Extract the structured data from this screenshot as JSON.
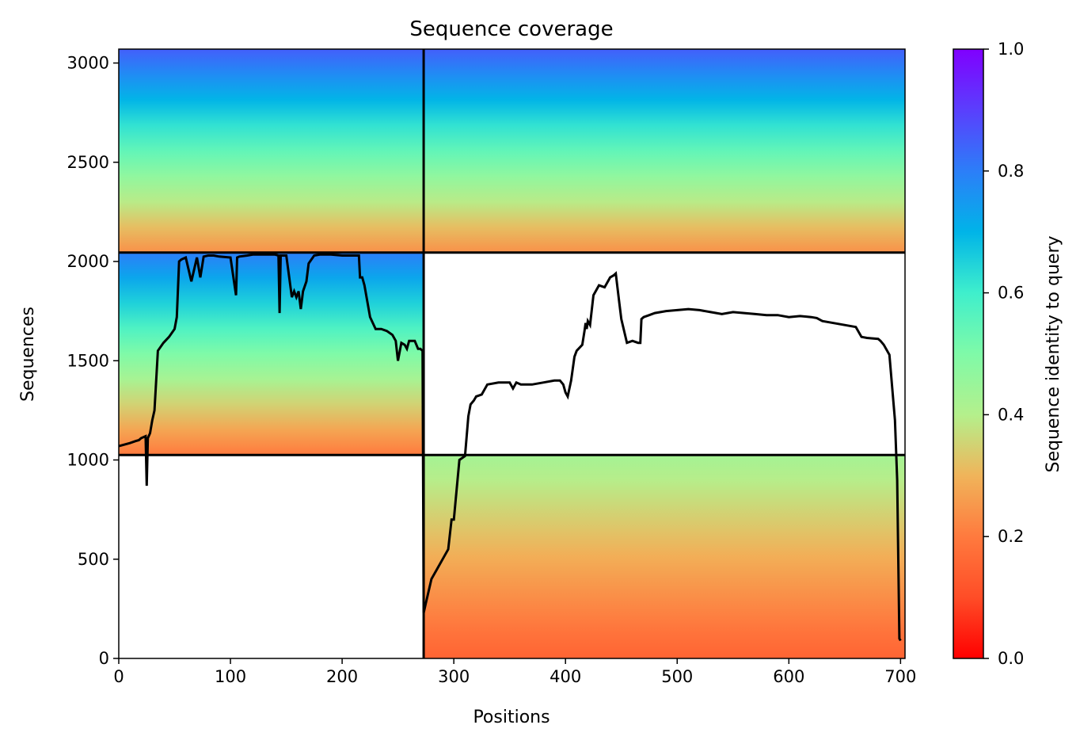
{
  "chart_data": {
    "type": "heatmap",
    "title": "Sequence coverage",
    "xlabel": "Positions",
    "ylabel": "Sequences",
    "xlim": [
      0,
      704
    ],
    "ylim": [
      0,
      3070
    ],
    "x_ticks": [
      "0",
      "100",
      "200",
      "300",
      "400",
      "500",
      "600",
      "700"
    ],
    "x_tick_values": [
      0,
      100,
      200,
      300,
      400,
      500,
      600,
      700
    ],
    "y_ticks": [
      "0",
      "500",
      "1000",
      "1500",
      "2000",
      "2500",
      "3000"
    ],
    "y_tick_values": [
      0,
      500,
      1000,
      1500,
      2000,
      2500,
      3000
    ],
    "colorbar": {
      "label": "Sequence identity to query",
      "range": [
        0,
        1
      ],
      "ticks": [
        "0.0",
        "0.2",
        "0.4",
        "0.6",
        "0.8",
        "1.0"
      ],
      "tick_values": [
        0,
        0.2,
        0.4,
        0.6,
        0.8,
        1.0
      ],
      "colormap": "rainbow_r"
    },
    "boundaries": {
      "x": 273,
      "y": [
        1025,
        2045
      ]
    },
    "blocks": [
      {
        "name": "block-top-left",
        "x": [
          0,
          273
        ],
        "y": [
          2045,
          3070
        ],
        "identity_bottom": 0.24,
        "identity_top": 0.85
      },
      {
        "name": "block-top-right",
        "x": [
          273,
          704
        ],
        "y": [
          2045,
          3070
        ],
        "identity_bottom": 0.24,
        "identity_top": 0.85
      },
      {
        "name": "block-middle-left",
        "x": [
          0,
          273
        ],
        "y": [
          1025,
          2045
        ],
        "identity_bottom": 0.2,
        "identity_top": 0.8
      },
      {
        "name": "block-bottom-right",
        "x": [
          273,
          704
        ],
        "y": [
          0,
          1025
        ],
        "identity_bottom": 0.15,
        "identity_top": 0.43
      }
    ],
    "coverage_line": {
      "x": [
        0,
        10,
        15,
        18,
        20,
        24,
        25,
        26,
        28,
        30,
        32,
        35,
        40,
        45,
        50,
        52,
        54,
        56,
        60,
        65,
        70,
        73,
        76,
        80,
        85,
        90,
        100,
        105,
        106,
        108,
        115,
        120,
        130,
        140,
        143,
        144,
        145,
        147,
        150,
        155,
        157,
        159,
        161,
        163,
        165,
        168,
        170,
        175,
        180,
        190,
        200,
        210,
        215,
        216,
        218,
        220,
        225,
        230,
        235,
        240,
        245,
        248,
        250,
        253,
        256,
        258,
        260,
        265,
        268,
        270,
        272,
        273,
        275,
        280,
        285,
        290,
        295,
        298,
        300,
        305,
        310,
        313,
        315,
        318,
        320,
        325,
        330,
        340,
        350,
        353,
        356,
        360,
        370,
        380,
        390,
        395,
        398,
        400,
        402,
        405,
        408,
        410,
        415,
        417,
        418,
        419,
        420,
        422,
        425,
        430,
        435,
        440,
        443,
        445,
        448,
        450,
        455,
        460,
        465,
        467,
        468,
        470,
        475,
        480,
        490,
        500,
        510,
        520,
        530,
        540,
        550,
        560,
        570,
        580,
        590,
        600,
        610,
        620,
        625,
        630,
        640,
        650,
        660,
        665,
        670,
        680,
        682,
        685,
        690,
        695,
        697,
        698,
        699,
        700,
        701,
        702,
        703
      ],
      "y": [
        1070,
        1085,
        1095,
        1100,
        1110,
        1120,
        870,
        1110,
        1135,
        1200,
        1250,
        1550,
        1590,
        1620,
        1660,
        1720,
        2000,
        2010,
        2020,
        1900,
        2020,
        1920,
        2025,
        2030,
        2030,
        2025,
        2020,
        1830,
        2020,
        2025,
        2030,
        2035,
        2035,
        2035,
        2030,
        1740,
        2030,
        2030,
        2030,
        1820,
        1850,
        1820,
        1850,
        1760,
        1850,
        1900,
        1990,
        2030,
        2035,
        2035,
        2030,
        2030,
        2030,
        1920,
        1920,
        1880,
        1720,
        1660,
        1660,
        1650,
        1630,
        1600,
        1500,
        1590,
        1580,
        1560,
        1600,
        1600,
        1560,
        1560,
        1550,
        230,
        280,
        400,
        450,
        500,
        550,
        700,
        700,
        1000,
        1020,
        1220,
        1280,
        1300,
        1320,
        1330,
        1380,
        1390,
        1390,
        1360,
        1390,
        1380,
        1380,
        1390,
        1400,
        1400,
        1380,
        1340,
        1320,
        1400,
        1520,
        1550,
        1580,
        1650,
        1690,
        1660,
        1700,
        1680,
        1830,
        1880,
        1870,
        1920,
        1930,
        1940,
        1800,
        1710,
        1590,
        1600,
        1590,
        1590,
        1710,
        1720,
        1730,
        1740,
        1750,
        1755,
        1760,
        1755,
        1745,
        1735,
        1745,
        1740,
        1735,
        1730,
        1730,
        1720,
        1725,
        1720,
        1715,
        1700,
        1690,
        1680,
        1670,
        1620,
        1615,
        1610,
        1600,
        1580,
        1530,
        1200,
        900,
        500,
        100,
        90
      ]
    }
  }
}
